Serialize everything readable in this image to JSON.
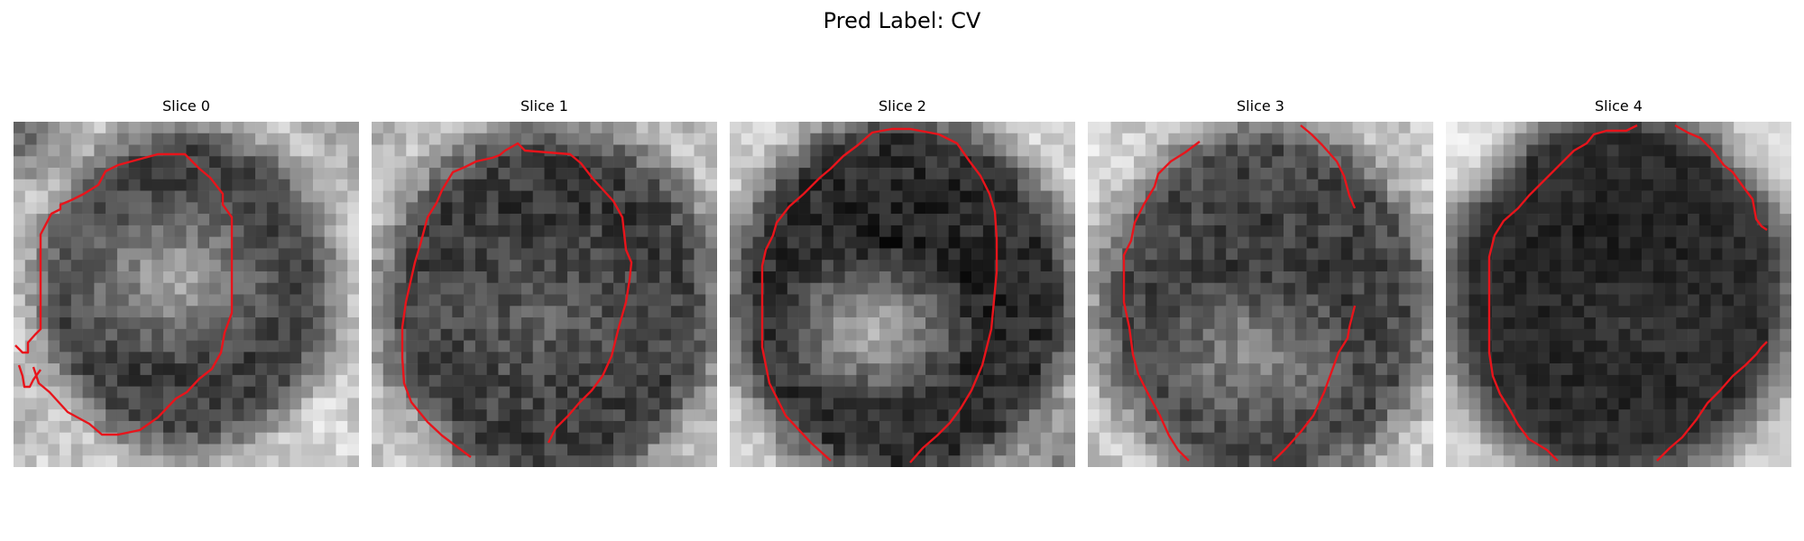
{
  "figure": {
    "title": "Pred Label: CV"
  },
  "colors": {
    "contour": "#e8141b",
    "background": "#ffffff"
  },
  "slices": [
    {
      "title": "Slice 0"
    },
    {
      "title": "Slice 1"
    },
    {
      "title": "Slice 2"
    },
    {
      "title": "Slice 3"
    },
    {
      "title": "Slice 4"
    }
  ]
}
